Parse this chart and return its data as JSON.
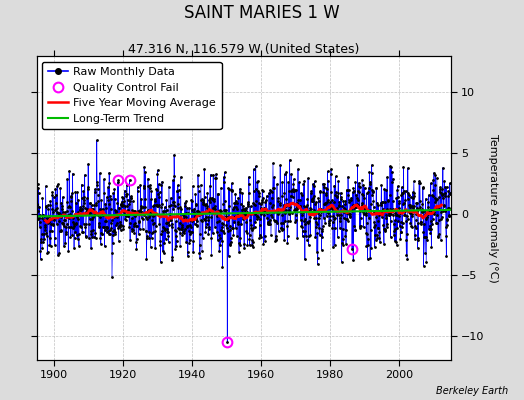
{
  "title": "SAINT MARIES 1 W",
  "subtitle": "47.316 N, 116.579 W (United States)",
  "ylabel": "Temperature Anomaly (°C)",
  "credit": "Berkeley Earth",
  "xlim": [
    1895,
    2015
  ],
  "ylim": [
    -12,
    13
  ],
  "yticks": [
    -10,
    -5,
    0,
    5,
    10
  ],
  "xticks": [
    1900,
    1920,
    1940,
    1960,
    1980,
    2000
  ],
  "year_start": 1895,
  "year_end": 2014,
  "seed": 42,
  "raw_color": "#0000FF",
  "dot_color": "#000000",
  "ma_color": "#FF0000",
  "trend_color": "#00BB00",
  "qc_color": "#FF00FF",
  "bg_color": "#DCDCDC",
  "plot_bg_color": "#FFFFFF",
  "grid_color": "#C0C0C0",
  "title_fontsize": 12,
  "subtitle_fontsize": 9,
  "label_fontsize": 8,
  "tick_fontsize": 8,
  "legend_fontsize": 8
}
